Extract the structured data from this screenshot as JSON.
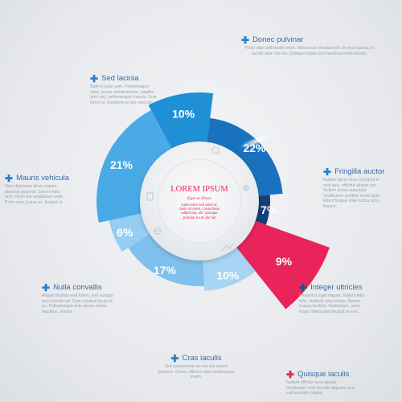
{
  "chart_data": {
    "type": "pie",
    "values": [
      10,
      22,
      7,
      9,
      10,
      17,
      6,
      21
    ],
    "value_labels": [
      "10%",
      "22%",
      "7%",
      "9%",
      "10%",
      "17%",
      "6%",
      "21%"
    ],
    "colors": [
      "#1f8fd6",
      "#1972bd",
      "#143f77",
      "#e8245a",
      "#a7d4f2",
      "#7fc0ec",
      "#96cef3",
      "#4aaae6"
    ],
    "center": {
      "title": "LOREM IPSUM",
      "subtitle": "Eget ut libero",
      "body": "Justo enim sed amet ut. Justo sit amet, consectetur adipiscing, elit. Quisque pulvinar mi ac dui fuit"
    }
  },
  "labels": [
    {
      "title": "Donec pulvinar",
      "plus_color": "#2a7fd0",
      "text": "Proin vitae sollicitudin enim. Maecenas tincidunt elit sit amet lacinia, in iaculis ante nisi dui. Quisque fugiat eros faucibus mattis lorem."
    },
    {
      "title": "Sed lacinia",
      "plus_color": "#2a7fd0",
      "text": "Nam in justo sem. Pellentesque vitae, lectus condimentum, sagittis arcu nec, pellentesque mauris. Duis lorem id, hendrerit eu leo vehicula."
    },
    {
      "title": "Mauris vehicula",
      "plus_color": "#2a7fd0",
      "text": "Nam dignissim sit eu sapien placerat placerat. Sed in nulla ante. Proin leo vestibulum ante. Proin eros, luctus ac, feugiat et."
    },
    {
      "title": "Fringilla auctor",
      "plus_color": "#2a7fd0",
      "text": "Nullam lacus risus, tincidunt in velit quis, efficitur aliquet orci. Nullam lectus vulputate. Vestibulum porttitor lorem quis. Etiam feugiat vitae luctus arcu. Mauris."
    },
    {
      "title": "Nulla convallis",
      "plus_color": "#2a7fd0",
      "text": "Aliquet facilisis erat lorem, sed suscipit arcu blandit vel. Cras volutpat ligula et eu. Pellentesque ante ipsum primis, faucibus, massa."
    },
    {
      "title": "Integer ultricies",
      "plus_color": "#2a4e8a",
      "text": "Phasellus eget magna. Nullam felis felis, eleifend vitae lectus. Mauris massa facilisis. Vestibulum, enim turpis malesuada feugiat eu nec."
    },
    {
      "title": "Cras iaculis",
      "plus_color": "#2a7fd0",
      "text": "Sed consectetur mi non dui rutrum posuere. Donec efficitur vitae scelerisque lorem."
    },
    {
      "title": "Quisque iaculis",
      "plus_color": "#e8245a",
      "text": "Nullam efficitur arcu aliquet. Vestibulum ante blandit aliquam arcu, sed suscipit magna."
    }
  ]
}
